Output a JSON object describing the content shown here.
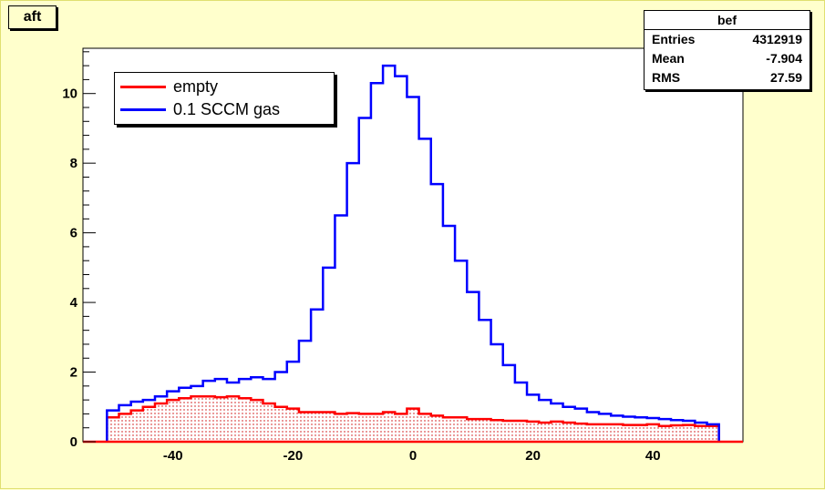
{
  "title": "aft",
  "stats": {
    "name": "bef",
    "rows": [
      {
        "label": "Entries",
        "value": "4312919"
      },
      {
        "label": "Mean",
        "value": "-7.904"
      },
      {
        "label": "RMS",
        "value": "27.59"
      }
    ]
  },
  "legend": [
    {
      "label": "empty",
      "color": "#ff0000"
    },
    {
      "label": "0.1 SCCM gas",
      "color": "#0000ff"
    }
  ],
  "chart_data": {
    "type": "line",
    "title": "aft",
    "xlabel": "",
    "ylabel": "",
    "xlim": [
      -55,
      55
    ],
    "ylim": [
      0,
      11.3
    ],
    "x_ticks": [
      -40,
      -20,
      0,
      20,
      40
    ],
    "y_ticks": [
      0,
      2,
      4,
      6,
      8,
      10
    ],
    "grid": false,
    "legend_position": "top-left",
    "series": [
      {
        "name": "empty",
        "color": "#ff0000",
        "fill": "dotted",
        "x": [
          -50,
          -48,
          -46,
          -44,
          -42,
          -40,
          -38,
          -36,
          -34,
          -32,
          -30,
          -28,
          -26,
          -24,
          -22,
          -20,
          -18,
          -16,
          -14,
          -12,
          -10,
          -8,
          -6,
          -4,
          -2,
          0,
          2,
          4,
          6,
          8,
          10,
          12,
          14,
          16,
          18,
          20,
          22,
          24,
          26,
          28,
          30,
          32,
          34,
          36,
          38,
          40,
          42,
          44,
          46,
          48,
          50
        ],
        "y": [
          0.7,
          0.8,
          0.9,
          1.0,
          1.1,
          1.2,
          1.25,
          1.3,
          1.3,
          1.28,
          1.3,
          1.25,
          1.2,
          1.1,
          1.0,
          0.95,
          0.85,
          0.85,
          0.85,
          0.8,
          0.82,
          0.8,
          0.8,
          0.85,
          0.8,
          0.95,
          0.8,
          0.75,
          0.7,
          0.7,
          0.65,
          0.65,
          0.62,
          0.6,
          0.6,
          0.58,
          0.55,
          0.58,
          0.55,
          0.52,
          0.5,
          0.5,
          0.5,
          0.48,
          0.48,
          0.5,
          0.45,
          0.47,
          0.48,
          0.45,
          0.45
        ]
      },
      {
        "name": "0.1 SCCM gas",
        "color": "#0000ff",
        "fill": "none",
        "x": [
          -50,
          -48,
          -46,
          -44,
          -42,
          -40,
          -38,
          -36,
          -34,
          -32,
          -30,
          -28,
          -26,
          -24,
          -22,
          -20,
          -18,
          -16,
          -14,
          -12,
          -10,
          -8,
          -6,
          -4,
          -2,
          0,
          2,
          4,
          6,
          8,
          10,
          12,
          14,
          16,
          18,
          20,
          22,
          24,
          26,
          28,
          30,
          32,
          34,
          36,
          38,
          40,
          42,
          44,
          46,
          48,
          50
        ],
        "y": [
          0.9,
          1.05,
          1.15,
          1.2,
          1.3,
          1.45,
          1.55,
          1.6,
          1.75,
          1.8,
          1.7,
          1.8,
          1.85,
          1.8,
          2.0,
          2.3,
          2.9,
          3.8,
          5.0,
          6.5,
          8.0,
          9.3,
          10.3,
          10.8,
          10.5,
          9.9,
          8.7,
          7.4,
          6.2,
          5.2,
          4.3,
          3.5,
          2.8,
          2.2,
          1.7,
          1.35,
          1.2,
          1.1,
          1.0,
          0.95,
          0.85,
          0.8,
          0.75,
          0.72,
          0.7,
          0.68,
          0.65,
          0.62,
          0.6,
          0.55,
          0.5
        ]
      }
    ]
  }
}
